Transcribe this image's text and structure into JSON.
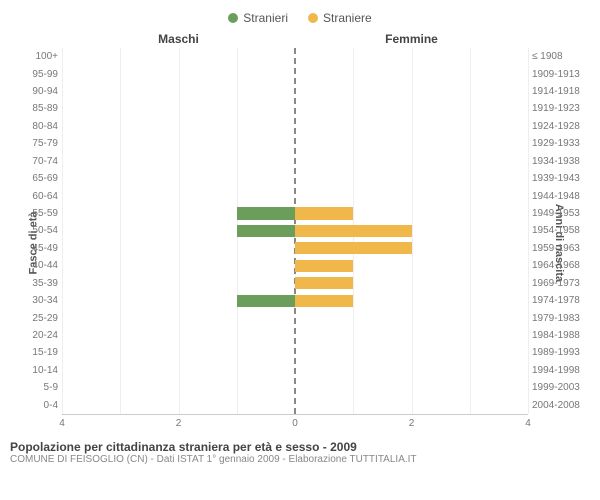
{
  "chart": {
    "type": "population-pyramid",
    "legend": [
      {
        "label": "Stranieri",
        "color": "#6b9e5b"
      },
      {
        "label": "Straniere",
        "color": "#f0b84a"
      }
    ],
    "left_header": "Maschi",
    "right_header": "Femmine",
    "y_left_title": "Fasce di età",
    "y_right_title": "Anni di nascita",
    "x_max": 4,
    "x_ticks": [
      4,
      2,
      0,
      2,
      4
    ],
    "bar_male_color": "#6b9e5b",
    "bar_female_color": "#f0b84a",
    "grid_color": "#eeeeee",
    "axis_color": "#cccccc",
    "center_dash_color": "#888888",
    "rows": [
      {
        "age": "100+",
        "birth": "≤ 1908",
        "m": 0,
        "f": 0
      },
      {
        "age": "95-99",
        "birth": "1909-1913",
        "m": 0,
        "f": 0
      },
      {
        "age": "90-94",
        "birth": "1914-1918",
        "m": 0,
        "f": 0
      },
      {
        "age": "85-89",
        "birth": "1919-1923",
        "m": 0,
        "f": 0
      },
      {
        "age": "80-84",
        "birth": "1924-1928",
        "m": 0,
        "f": 0
      },
      {
        "age": "75-79",
        "birth": "1929-1933",
        "m": 0,
        "f": 0
      },
      {
        "age": "70-74",
        "birth": "1934-1938",
        "m": 0,
        "f": 0
      },
      {
        "age": "65-69",
        "birth": "1939-1943",
        "m": 0,
        "f": 0
      },
      {
        "age": "60-64",
        "birth": "1944-1948",
        "m": 0,
        "f": 0
      },
      {
        "age": "55-59",
        "birth": "1949-1953",
        "m": 1,
        "f": 1
      },
      {
        "age": "50-54",
        "birth": "1954-1958",
        "m": 1,
        "f": 2
      },
      {
        "age": "45-49",
        "birth": "1959-1963",
        "m": 0,
        "f": 2
      },
      {
        "age": "40-44",
        "birth": "1964-1968",
        "m": 0,
        "f": 1
      },
      {
        "age": "35-39",
        "birth": "1969-1973",
        "m": 0,
        "f": 1
      },
      {
        "age": "30-34",
        "birth": "1974-1978",
        "m": 1,
        "f": 1
      },
      {
        "age": "25-29",
        "birth": "1979-1983",
        "m": 0,
        "f": 0
      },
      {
        "age": "20-24",
        "birth": "1984-1988",
        "m": 0,
        "f": 0
      },
      {
        "age": "15-19",
        "birth": "1989-1993",
        "m": 0,
        "f": 0
      },
      {
        "age": "10-14",
        "birth": "1994-1998",
        "m": 0,
        "f": 0
      },
      {
        "age": "5-9",
        "birth": "1999-2003",
        "m": 0,
        "f": 0
      },
      {
        "age": "0-4",
        "birth": "2004-2008",
        "m": 0,
        "f": 0
      }
    ],
    "caption_title": "Popolazione per cittadinanza straniera per età e sesso - 2009",
    "caption_sub": "COMUNE DI FEISOGLIO (CN) - Dati ISTAT 1° gennaio 2009 - Elaborazione TUTTITALIA.IT"
  }
}
